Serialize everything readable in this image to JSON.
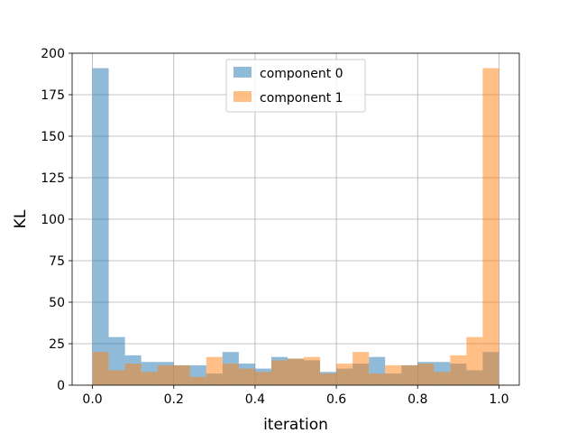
{
  "chart_data": {
    "type": "bar",
    "subtype": "overlapping-histogram",
    "xlabel": "iteration",
    "ylabel": "KL",
    "xlim": [
      -0.05,
      1.05
    ],
    "ylim": [
      0,
      200
    ],
    "x_ticks": [
      "0.0",
      "0.2",
      "0.4",
      "0.6",
      "0.8",
      "1.0"
    ],
    "y_ticks": [
      "0",
      "25",
      "50",
      "75",
      "100",
      "125",
      "150",
      "175",
      "200"
    ],
    "grid": true,
    "legend_position": "top-center",
    "bin_start": 0.0,
    "bin_width": 0.04,
    "series": [
      {
        "name": "component 0",
        "color": "#1f77b4",
        "alpha": 0.5,
        "values": [
          191,
          29,
          18,
          14,
          14,
          12,
          12,
          7,
          20,
          13,
          10,
          17,
          16,
          15,
          8,
          10,
          13,
          17,
          7,
          12,
          14,
          14,
          13,
          9,
          20
        ]
      },
      {
        "name": "component 1",
        "color": "#ff7f0e",
        "alpha": 0.5,
        "values": [
          20,
          9,
          13,
          8,
          12,
          12,
          5,
          17,
          13,
          10,
          8,
          15,
          16,
          17,
          7,
          13,
          20,
          7,
          12,
          12,
          13,
          8,
          18,
          29,
          191
        ]
      }
    ]
  }
}
